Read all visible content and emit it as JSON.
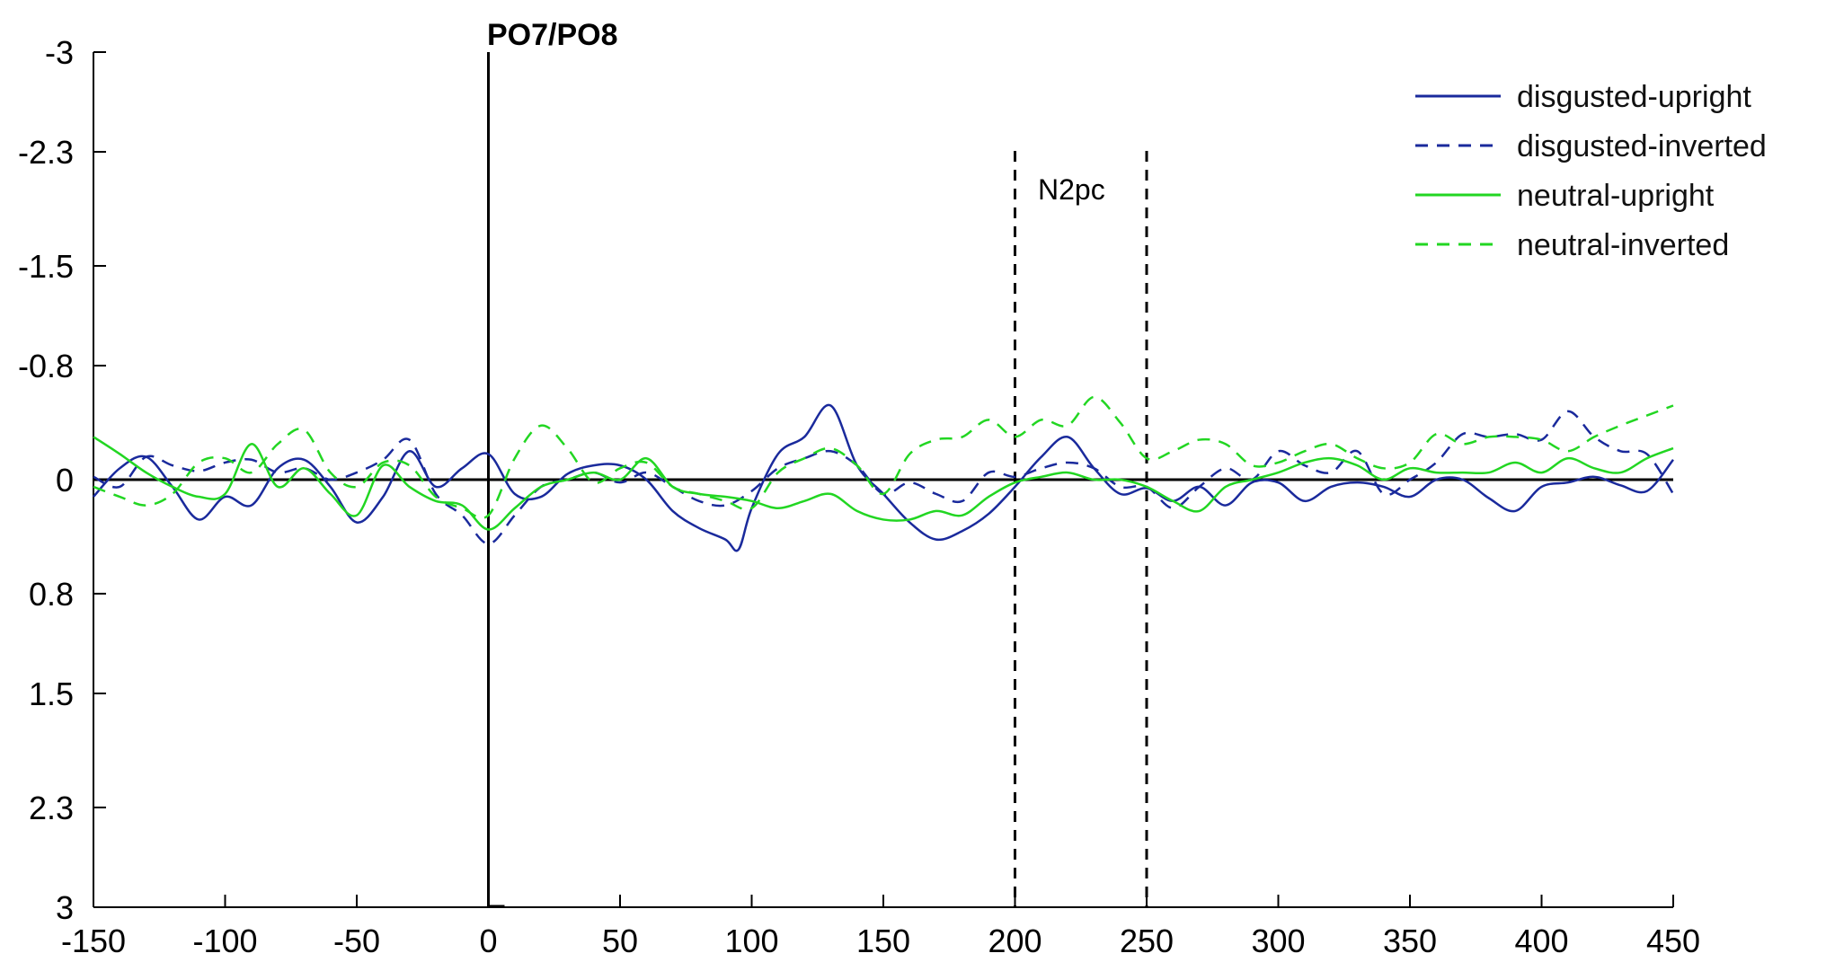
{
  "chart_data": {
    "type": "line",
    "title": "PO7/PO8",
    "xlabel": "",
    "ylabel": "",
    "xlim": [
      -150,
      450
    ],
    "ylim": [
      -3,
      3
    ],
    "y_inverted": true,
    "xticks": [
      -150,
      -100,
      -50,
      0,
      50,
      100,
      150,
      200,
      250,
      300,
      350,
      400,
      450
    ],
    "yticks": [
      -3,
      -2.3,
      -1.5,
      -0.8,
      0,
      0.8,
      1.5,
      2.3,
      3
    ],
    "ytick_labels": [
      "-3",
      "-2.3",
      "-1.5",
      "-0.8",
      "0",
      "0.8",
      "1.5",
      "2.3",
      "3"
    ],
    "zero_line": 0,
    "onset_line": 0,
    "window": {
      "start": 200,
      "end": 250,
      "label": "N2pc"
    },
    "legend_position": "top-right",
    "grid": false,
    "series": [
      {
        "name": "disgusted-upright",
        "color": "#1a2a9c",
        "style": "solid",
        "x": [
          -150,
          -140,
          -130,
          -120,
          -110,
          -100,
          -90,
          -80,
          -70,
          -60,
          -50,
          -40,
          -30,
          -20,
          -10,
          0,
          10,
          20,
          30,
          40,
          50,
          60,
          70,
          80,
          90,
          95,
          100,
          110,
          120,
          130,
          140,
          150,
          160,
          170,
          180,
          190,
          200,
          210,
          220,
          230,
          240,
          250,
          260,
          270,
          280,
          290,
          300,
          310,
          320,
          330,
          340,
          350,
          360,
          370,
          380,
          390,
          400,
          410,
          420,
          430,
          440,
          450
        ],
        "y": [
          0.12,
          -0.08,
          -0.16,
          0.05,
          0.28,
          0.12,
          0.18,
          -0.08,
          -0.14,
          0.05,
          0.3,
          0.12,
          -0.2,
          0.05,
          -0.08,
          -0.18,
          0.1,
          0.12,
          -0.04,
          -0.1,
          -0.1,
          0.0,
          0.22,
          0.34,
          0.42,
          0.49,
          0.2,
          -0.18,
          -0.3,
          -0.52,
          -0.1,
          0.1,
          0.3,
          0.42,
          0.36,
          0.24,
          0.05,
          -0.16,
          -0.3,
          -0.08,
          0.1,
          0.06,
          0.15,
          0.05,
          0.18,
          0.02,
          0.02,
          0.15,
          0.05,
          0.02,
          0.05,
          0.12,
          0.0,
          0.0,
          0.13,
          0.22,
          0.05,
          0.02,
          -0.02,
          0.04,
          0.08,
          -0.14
        ]
      },
      {
        "name": "disgusted-inverted",
        "color": "#1a2a9c",
        "style": "dashed",
        "x": [
          -150,
          -140,
          -130,
          -120,
          -110,
          -100,
          -90,
          -80,
          -70,
          -60,
          -50,
          -40,
          -30,
          -20,
          -10,
          0,
          10,
          20,
          30,
          40,
          50,
          60,
          70,
          80,
          90,
          100,
          110,
          120,
          130,
          140,
          150,
          160,
          170,
          180,
          190,
          200,
          210,
          220,
          230,
          240,
          250,
          260,
          270,
          280,
          290,
          300,
          310,
          320,
          330,
          340,
          350,
          360,
          370,
          380,
          390,
          400,
          410,
          420,
          430,
          440,
          450
        ],
        "y": [
          -0.02,
          0.05,
          -0.16,
          -0.1,
          -0.06,
          -0.12,
          -0.14,
          -0.05,
          -0.08,
          0.0,
          -0.05,
          -0.14,
          -0.28,
          0.1,
          0.25,
          0.45,
          0.25,
          0.05,
          0.0,
          -0.05,
          0.02,
          -0.05,
          0.05,
          0.15,
          0.18,
          0.08,
          -0.08,
          -0.15,
          -0.2,
          -0.1,
          0.1,
          0.02,
          0.1,
          0.15,
          -0.05,
          -0.02,
          -0.08,
          -0.12,
          -0.08,
          0.05,
          0.05,
          0.2,
          0.05,
          -0.08,
          0.0,
          -0.2,
          -0.1,
          -0.05,
          -0.2,
          0.1,
          0.0,
          -0.12,
          -0.32,
          -0.3,
          -0.32,
          -0.28,
          -0.48,
          -0.3,
          -0.2,
          -0.18,
          0.1
        ]
      },
      {
        "name": "neutral-upright",
        "color": "#22d622",
        "style": "solid",
        "x": [
          -150,
          -140,
          -130,
          -120,
          -110,
          -100,
          -90,
          -80,
          -70,
          -60,
          -50,
          -40,
          -30,
          -20,
          -10,
          0,
          10,
          20,
          30,
          40,
          50,
          60,
          70,
          80,
          90,
          100,
          110,
          120,
          130,
          140,
          150,
          160,
          170,
          180,
          190,
          200,
          210,
          220,
          230,
          240,
          250,
          260,
          270,
          280,
          290,
          300,
          310,
          320,
          330,
          340,
          350,
          360,
          370,
          380,
          390,
          400,
          410,
          420,
          430,
          440,
          450
        ],
        "y": [
          -0.3,
          -0.18,
          -0.05,
          0.05,
          0.12,
          0.1,
          -0.25,
          0.05,
          -0.08,
          0.1,
          0.25,
          -0.1,
          0.05,
          0.15,
          0.18,
          0.35,
          0.2,
          0.05,
          0.0,
          -0.05,
          0.0,
          -0.15,
          0.05,
          0.1,
          0.12,
          0.15,
          0.2,
          0.15,
          0.1,
          0.22,
          0.28,
          0.28,
          0.22,
          0.25,
          0.12,
          0.02,
          -0.02,
          -0.05,
          0.0,
          0.0,
          0.05,
          0.15,
          0.22,
          0.05,
          0.0,
          -0.05,
          -0.12,
          -0.15,
          -0.1,
          0.0,
          -0.08,
          -0.05,
          -0.05,
          -0.05,
          -0.12,
          -0.05,
          -0.15,
          -0.08,
          -0.05,
          -0.15,
          -0.22
        ]
      },
      {
        "name": "neutral-inverted",
        "color": "#22d622",
        "style": "dashed",
        "x": [
          -150,
          -140,
          -130,
          -120,
          -110,
          -100,
          -90,
          -80,
          -70,
          -60,
          -50,
          -40,
          -30,
          -20,
          -10,
          0,
          10,
          20,
          30,
          40,
          50,
          60,
          70,
          80,
          90,
          100,
          110,
          120,
          130,
          140,
          150,
          160,
          170,
          180,
          190,
          200,
          210,
          220,
          230,
          240,
          250,
          260,
          270,
          280,
          290,
          300,
          310,
          320,
          330,
          340,
          350,
          360,
          370,
          380,
          390,
          400,
          410,
          420,
          430,
          440,
          450
        ],
        "y": [
          0.05,
          0.12,
          0.18,
          0.1,
          -0.12,
          -0.15,
          -0.05,
          -0.25,
          -0.35,
          -0.05,
          0.05,
          -0.12,
          -0.1,
          0.12,
          0.2,
          0.25,
          -0.15,
          -0.38,
          -0.22,
          0.02,
          -0.08,
          -0.12,
          0.05,
          0.1,
          0.15,
          0.2,
          -0.05,
          -0.15,
          -0.22,
          -0.1,
          0.1,
          -0.18,
          -0.28,
          -0.3,
          -0.42,
          -0.3,
          -0.42,
          -0.38,
          -0.58,
          -0.4,
          -0.15,
          -0.2,
          -0.28,
          -0.25,
          -0.1,
          -0.12,
          -0.2,
          -0.25,
          -0.15,
          -0.08,
          -0.12,
          -0.32,
          -0.25,
          -0.3,
          -0.3,
          -0.28,
          -0.2,
          -0.3,
          -0.38,
          -0.45,
          -0.52
        ]
      }
    ]
  }
}
